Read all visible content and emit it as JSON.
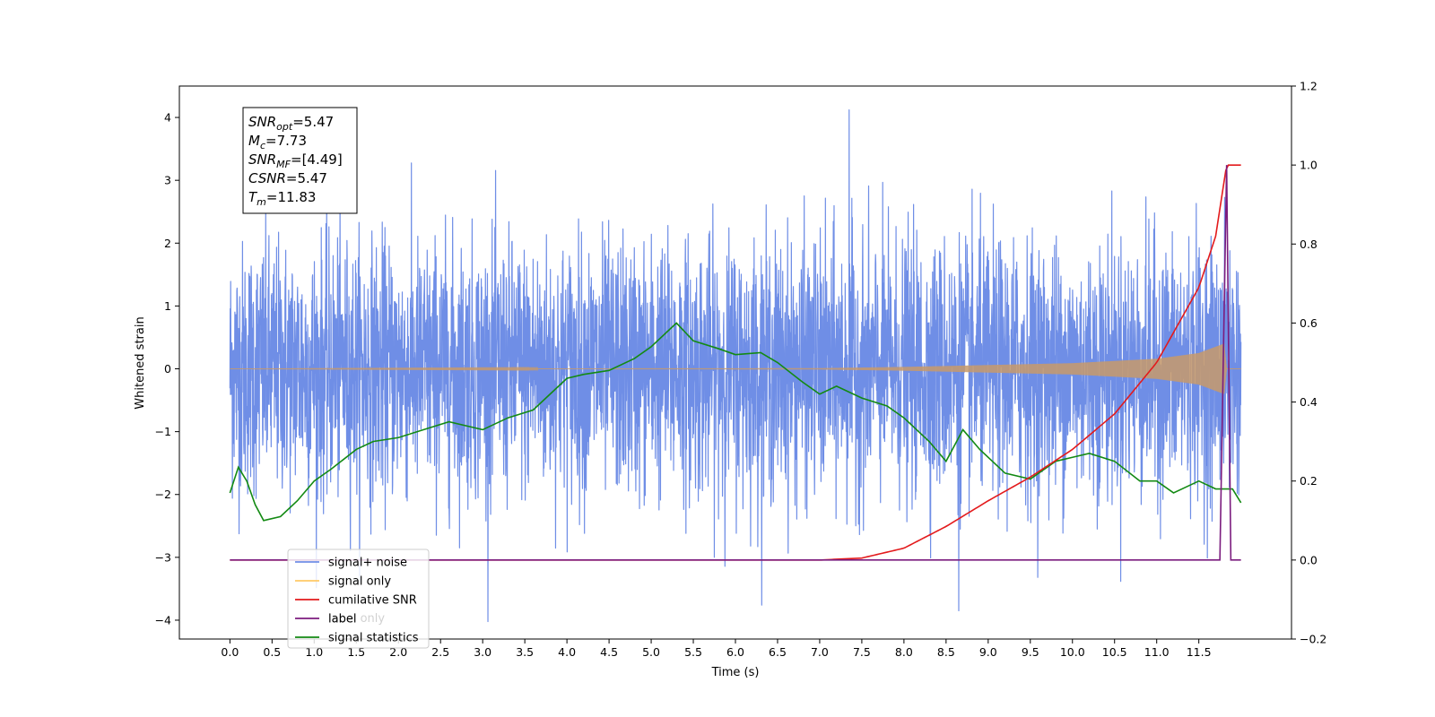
{
  "chart_data": {
    "type": "line",
    "xlabel": "Time (s)",
    "ylabel": "Whitened strain",
    "xlim": [
      -0.6,
      12.6
    ],
    "ylim": [
      -4.3,
      4.5
    ],
    "ylim_right": [
      -0.2,
      1.2
    ],
    "x_ticks": [
      "0.0",
      "0.5",
      "1.0",
      "1.5",
      "2.0",
      "2.5",
      "3.0",
      "3.5",
      "4.0",
      "4.5",
      "5.0",
      "5.5",
      "6.0",
      "6.5",
      "7.0",
      "7.5",
      "8.0",
      "8.5",
      "9.0",
      "9.5",
      "10.0",
      "10.5",
      "11.0",
      "11.5"
    ],
    "y_ticks_left": [
      "4",
      "3",
      "2",
      "1",
      "0",
      "−1",
      "−2",
      "−3",
      "−4"
    ],
    "y_ticks_right": [
      "1.2",
      "1.0",
      "0.8",
      "0.6",
      "0.4",
      "0.2",
      "0.0",
      "−0.2"
    ],
    "legend": {
      "position": "lower-left",
      "entries": [
        {
          "label": "signal+ noise",
          "color": "#6f8ee6"
        },
        {
          "label": "signal only",
          "color": "#ffc966"
        },
        {
          "label": "cumilative SNR",
          "color": "#e31a1c"
        },
        {
          "label": "label",
          "color": "#7b1c7e"
        },
        {
          "label": "signal statistics",
          "color": "#138a13"
        }
      ],
      "behind_text": [
        "label only"
      ]
    },
    "info_box": {
      "lines": [
        {
          "main": "SNR",
          "sub": "opt",
          "rest": "=5.47"
        },
        {
          "main": "M",
          "sub": "c",
          "rest": "=7.73"
        },
        {
          "main": "SNR",
          "sub": "MF",
          "rest": "=[4.49]"
        },
        {
          "main": "CSNR",
          "sub": "",
          "rest": "=5.47"
        },
        {
          "main": "T",
          "sub": "m",
          "rest": "=11.83"
        }
      ]
    },
    "series": [
      {
        "name": "signal+ noise",
        "axis": "left",
        "color": "#6f8ee6",
        "t_range": [
          0.0,
          12.0
        ],
        "samples": 4096,
        "amplitude_sigma": 1.0,
        "y_extremes": {
          "max": 4.12,
          "min": -3.85
        }
      },
      {
        "name": "signal only",
        "axis": "left",
        "color": "#ffc966",
        "t_range": [
          0.0,
          12.0
        ],
        "envelope": {
          "t": [
            0,
            7.0,
            8.0,
            9.0,
            10.0,
            11.0,
            11.5,
            11.8,
            11.83,
            12.0
          ],
          "amp": [
            0,
            0.01,
            0.03,
            0.06,
            0.09,
            0.16,
            0.25,
            0.4,
            0.0,
            0.0
          ]
        }
      },
      {
        "name": "cumilative SNR",
        "axis": "right",
        "color": "#e31a1c",
        "t": [
          0,
          7.0,
          7.5,
          8.0,
          8.5,
          9.0,
          9.5,
          10.0,
          10.5,
          11.0,
          11.5,
          11.7,
          11.83,
          12.0
        ],
        "y": [
          0,
          0,
          0.005,
          0.03,
          0.085,
          0.15,
          0.21,
          0.28,
          0.37,
          0.5,
          0.69,
          0.82,
          1.0,
          1.0
        ]
      },
      {
        "name": "label",
        "axis": "right",
        "color": "#7b1c7e",
        "t": [
          0,
          11.75,
          11.83,
          11.88,
          12.0
        ],
        "y": [
          0,
          0,
          1.0,
          0,
          0
        ]
      },
      {
        "name": "signal statistics",
        "axis": "right",
        "color": "#138a13",
        "t": [
          0,
          0.1,
          0.2,
          0.3,
          0.4,
          0.6,
          0.8,
          1.0,
          1.2,
          1.5,
          1.7,
          2.0,
          2.3,
          2.6,
          2.8,
          3.0,
          3.3,
          3.6,
          3.8,
          4.0,
          4.2,
          4.5,
          4.8,
          5.0,
          5.3,
          5.5,
          5.8,
          6.0,
          6.3,
          6.5,
          6.8,
          7.0,
          7.2,
          7.5,
          7.8,
          8.0,
          8.3,
          8.5,
          8.7,
          8.9,
          9.2,
          9.5,
          9.8,
          10.0,
          10.2,
          10.5,
          10.8,
          11.0,
          11.2,
          11.5,
          11.7,
          11.9,
          12.0
        ],
        "y": [
          0.17,
          0.235,
          0.2,
          0.14,
          0.1,
          0.11,
          0.15,
          0.2,
          0.23,
          0.28,
          0.3,
          0.31,
          0.33,
          0.35,
          0.34,
          0.33,
          0.36,
          0.38,
          0.42,
          0.46,
          0.47,
          0.48,
          0.51,
          0.54,
          0.6,
          0.555,
          0.535,
          0.52,
          0.525,
          0.5,
          0.45,
          0.42,
          0.44,
          0.41,
          0.39,
          0.36,
          0.3,
          0.25,
          0.33,
          0.28,
          0.22,
          0.205,
          0.25,
          0.26,
          0.27,
          0.25,
          0.2,
          0.2,
          0.17,
          0.2,
          0.18,
          0.18,
          0.145
        ]
      }
    ]
  }
}
